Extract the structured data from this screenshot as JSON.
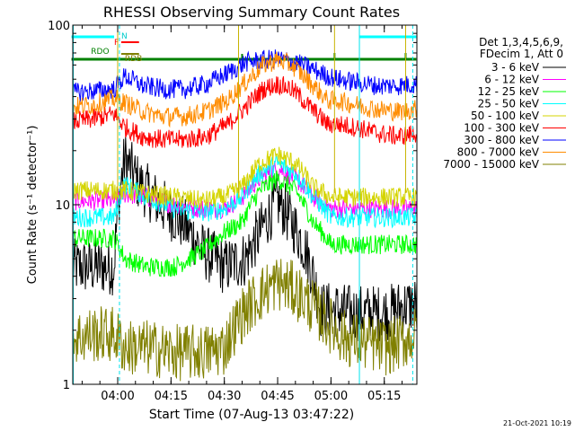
{
  "chart_data": {
    "type": "line",
    "title": "RHESSI Observing Summary Count Rates",
    "xlabel": "Start Time (07-Aug-13 03:47:22)",
    "ylabel": "Count Rate (s⁻¹ detector⁻¹)",
    "y_scale": "log",
    "ylim": [
      1,
      100
    ],
    "xlim": [
      "03:47:22",
      "05:24:10"
    ],
    "x_ticks": [
      "04:00",
      "04:15",
      "04:30",
      "04:45",
      "05:00",
      "05:15"
    ],
    "y_ticks": [
      "1",
      "10",
      "100"
    ],
    "legend_header": [
      "Det 1,3,4,5,6,9,",
      "FDecim 1, Att 0"
    ],
    "legend_position": "right",
    "series": [
      {
        "name": "3 - 6 keV",
        "color": "#000000",
        "x": [
          "03:47",
          "03:53",
          "03:59",
          "04:02",
          "04:06",
          "04:12",
          "04:18",
          "04:24",
          "04:30",
          "04:36",
          "04:40",
          "04:45",
          "04:49",
          "04:53",
          "04:57",
          "05:01",
          "05:06",
          "05:12",
          "05:16",
          "05:20",
          "05:24"
        ],
        "values": [
          4.5,
          4.5,
          4.5,
          18,
          13,
          10,
          8,
          5.5,
          4.5,
          5,
          7,
          10.5,
          8,
          5.5,
          2.6,
          2.6,
          2.5,
          2.5,
          2.5,
          2.7,
          2.8
        ]
      },
      {
        "name": "6 - 12 keV",
        "color": "#ff00ff",
        "x": [
          "03:47",
          "03:53",
          "03:59",
          "04:02",
          "04:08",
          "04:16",
          "04:24",
          "04:30",
          "04:35",
          "04:40",
          "04:45",
          "04:50",
          "04:55",
          "05:00",
          "05:05",
          "05:12",
          "05:18",
          "05:24"
        ],
        "values": [
          10.5,
          10.5,
          10.5,
          11.5,
          11,
          10,
          9.5,
          9.5,
          11,
          14,
          16,
          14,
          11,
          9.5,
          9.5,
          9.5,
          9.5,
          9.5
        ]
      },
      {
        "name": "12 - 25 keV",
        "color": "#00ff00",
        "x": [
          "03:47",
          "03:53",
          "03:59",
          "04:02",
          "04:08",
          "04:16",
          "04:24",
          "04:30",
          "04:35",
          "04:40",
          "04:45",
          "04:50",
          "04:55",
          "05:00",
          "05:05",
          "05:12",
          "05:18",
          "05:24"
        ],
        "values": [
          6.5,
          6.5,
          6.5,
          5,
          4.5,
          4.5,
          5.5,
          7,
          8,
          12,
          14,
          12,
          8,
          6,
          6,
          6,
          6,
          6
        ]
      },
      {
        "name": "25 - 50 keV",
        "color": "#00ffff",
        "x": [
          "03:47",
          "03:53",
          "03:59",
          "04:02",
          "04:08",
          "04:16",
          "04:24",
          "04:30",
          "04:35",
          "04:40",
          "04:45",
          "04:50",
          "04:55",
          "05:00",
          "05:05",
          "05:12",
          "05:18",
          "05:24"
        ],
        "values": [
          8.5,
          8.5,
          8.5,
          13,
          11,
          9.5,
          9,
          9.5,
          11,
          15,
          17,
          15,
          11,
          8.5,
          8.5,
          8.5,
          8.5,
          8.5
        ]
      },
      {
        "name": "50 - 100 keV",
        "color": "#d4d400",
        "x": [
          "03:47",
          "03:53",
          "03:59",
          "04:02",
          "04:08",
          "04:16",
          "04:24",
          "04:30",
          "04:35",
          "04:40",
          "04:45",
          "04:50",
          "04:55",
          "05:00",
          "05:05",
          "05:12",
          "05:18",
          "05:24"
        ],
        "values": [
          12,
          12,
          12,
          12,
          11.5,
          11,
          10.5,
          11,
          12.5,
          17,
          19,
          17,
          12.5,
          11,
          11,
          11,
          11,
          11
        ]
      },
      {
        "name": "100 - 300 keV",
        "color": "#ff0000",
        "x": [
          "03:47",
          "03:53",
          "03:59",
          "04:02",
          "04:07",
          "04:13",
          "04:19",
          "04:25",
          "04:31",
          "04:36",
          "04:41",
          "04:45",
          "04:49",
          "04:54",
          "04:59",
          "05:02",
          "05:07",
          "05:13",
          "05:19",
          "05:24"
        ],
        "values": [
          29,
          30,
          32,
          27,
          24,
          23,
          23,
          24,
          28,
          35,
          44,
          47,
          44,
          35,
          28,
          28,
          27,
          25,
          24,
          25
        ]
      },
      {
        "name": "300 - 800 keV",
        "color": "#0000ff",
        "x": [
          "03:47",
          "03:53",
          "03:59",
          "04:02",
          "04:07",
          "04:13",
          "04:19",
          "04:25",
          "04:31",
          "04:36",
          "04:41",
          "04:45",
          "04:49",
          "04:54",
          "04:59",
          "05:02",
          "05:07",
          "05:13",
          "05:19",
          "05:24"
        ],
        "values": [
          42,
          43,
          44,
          52,
          46,
          44,
          44,
          47,
          54,
          62,
          64,
          65,
          63,
          58,
          52,
          50,
          48,
          46,
          46,
          47
        ]
      },
      {
        "name": "800 - 7000 keV",
        "color": "#ff8c00",
        "x": [
          "03:47",
          "03:53",
          "03:59",
          "04:02",
          "04:07",
          "04:13",
          "04:19",
          "04:25",
          "04:31",
          "04:36",
          "04:41",
          "04:45",
          "04:49",
          "04:54",
          "04:59",
          "05:02",
          "05:07",
          "05:13",
          "05:19",
          "05:24"
        ],
        "values": [
          35,
          36,
          39,
          37,
          33,
          31,
          31,
          33,
          38,
          48,
          60,
          64,
          60,
          48,
          38,
          38,
          36,
          34,
          33,
          34
        ]
      },
      {
        "name": "7000 - 15000 keV",
        "color": "#808000",
        "x": [
          "03:47",
          "03:53",
          "03:59",
          "04:02",
          "04:08",
          "04:16",
          "04:24",
          "04:30",
          "04:36",
          "04:42",
          "04:45",
          "04:49",
          "04:54",
          "04:59",
          "05:04",
          "05:10",
          "05:16",
          "05:22",
          "05:24"
        ],
        "values": [
          1.8,
          1.9,
          1.9,
          1.6,
          1.6,
          1.5,
          1.5,
          1.6,
          2.6,
          3.4,
          3.7,
          3.4,
          2.8,
          2.2,
          1.8,
          1.7,
          1.6,
          1.8,
          1.9
        ]
      }
    ],
    "flag_lines": [
      {
        "label": "N",
        "color": "#00ffff",
        "segments": [
          [
            "03:47",
            "03:59"
          ],
          [
            "05:08",
            "05:24"
          ]
        ]
      },
      {
        "label": "F",
        "color": "#ff0000",
        "segments": [
          [
            "04:01",
            "04:06"
          ]
        ]
      },
      {
        "label": "RDO",
        "color": "#008000",
        "segments": [
          [
            "03:47",
            "04:35"
          ],
          [
            "04:35",
            "05:24"
          ]
        ]
      },
      {
        "label": "RDB",
        "color": "#808000",
        "segments": [
          [
            "04:01",
            "04:06"
          ]
        ]
      }
    ],
    "grid": false
  },
  "footer": {
    "timestamp": "21-Oct-2021 10:19"
  }
}
